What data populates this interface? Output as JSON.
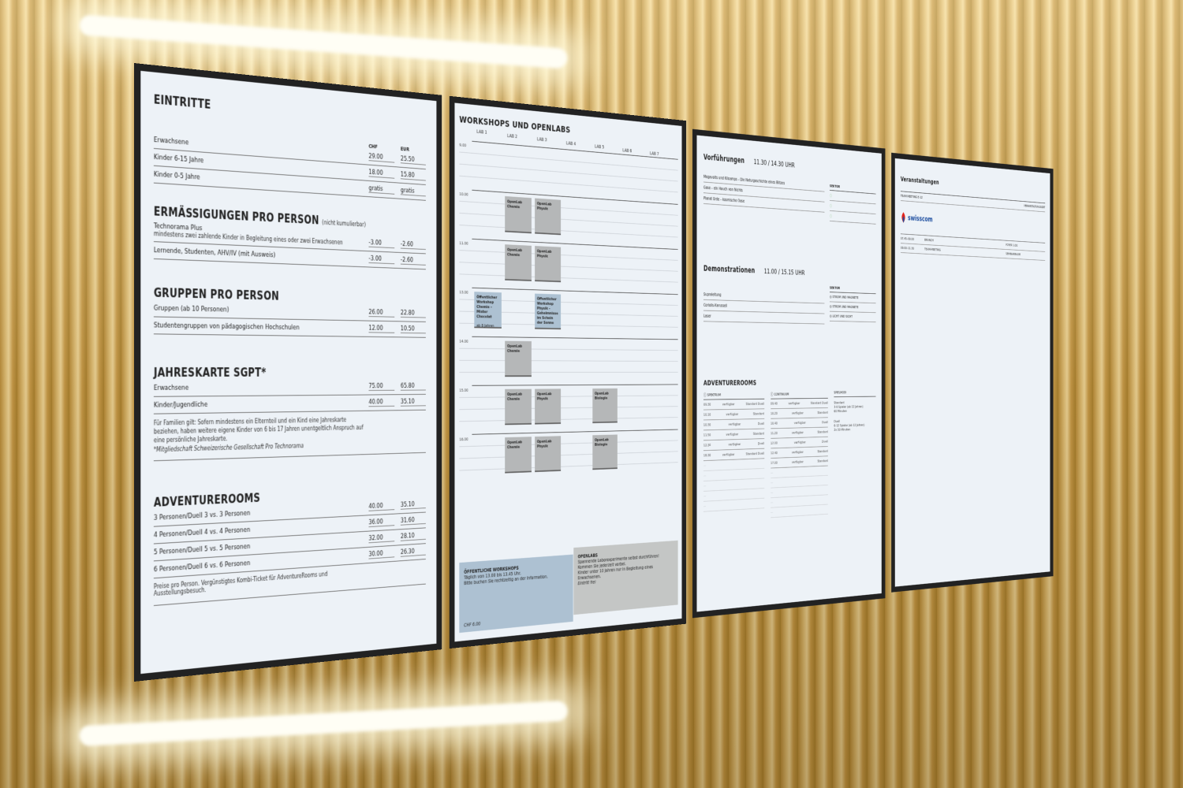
{
  "eintritte": {
    "title": "EINTRITTE",
    "col_chf": "CHF",
    "col_eur": "EUR",
    "rows": [
      {
        "label": "Erwachsene",
        "chf": "29.00",
        "eur": "25.50"
      },
      {
        "label": "Kinder 6-15 Jahre",
        "chf": "18.00",
        "eur": "15.80"
      },
      {
        "label": "Kinder 0-5 Jahre",
        "chf": "gratis",
        "eur": "gratis"
      }
    ]
  },
  "ermaessigungen": {
    "title": "ERMÄSSIGUNGEN PRO PERSON",
    "note": "(nicht kumulierbar)",
    "rows": [
      {
        "label": "Technorama Plus",
        "sub": "mindestens zwei zahlende Kinder in Begleitung eines oder zwei Erwachsenen",
        "chf": "-3.00",
        "eur": "-2.60"
      },
      {
        "label": "Lernende, Studenten, AHV/IV (mit Ausweis)",
        "sub": "",
        "chf": "-3.00",
        "eur": "-2.60"
      }
    ]
  },
  "gruppen": {
    "title": "GRUPPEN PRO PERSON",
    "rows": [
      {
        "label": "Gruppen (ab 10 Personen)",
        "chf": "26.00",
        "eur": "22.80"
      },
      {
        "label": "Studentengruppen von pädagogischen Hochschulen",
        "chf": "12.00",
        "eur": "10.50"
      }
    ]
  },
  "jahreskarte": {
    "title": "JAHRESKARTE SGPT*",
    "rows": [
      {
        "label": "Erwachsene",
        "chf": "75.00",
        "eur": "65.80"
      },
      {
        "label": "Kinder/Jugendliche",
        "chf": "40.00",
        "eur": "35.10"
      }
    ],
    "note": "Für Familien gilt: Sofern mindestens ein Elternteil und ein Kind eine Jahreskarte beziehen, haben weitere eigene Kinder von 6 bis 17 Jahren unentgeltlich Anspruch auf eine persönliche Jahreskarte.",
    "footnote": "*Mitgliedschaft Schweizerische Gesellschaft Pro Technorama"
  },
  "adventurerooms_prices": {
    "title": "ADVENTUREROOMS",
    "rows": [
      {
        "label": "3 Personen/Duell 3 vs. 3 Personen",
        "chf": "40.00",
        "eur": "35.10"
      },
      {
        "label": "4 Personen/Duell 4 vs. 4 Personen",
        "chf": "36.00",
        "eur": "31.60"
      },
      {
        "label": "5 Personen/Duell 5 vs. 5 Personen",
        "chf": "32.00",
        "eur": "28.10"
      },
      {
        "label": "6 Personen/Duell 6 vs. 6 Personen",
        "chf": "30.00",
        "eur": "26.30"
      }
    ],
    "note": "Preise pro Person. Vergünstigtes Kombi-Ticket für AdventureRooms und Ausstellungsbesuch."
  },
  "workshops": {
    "title": "WORKSHOPS UND OPENLABS",
    "labs": [
      "LAB 1",
      "LAB 2",
      "LAB 3",
      "LAB 4",
      "LAB 5",
      "LAB 6",
      "LAB 7"
    ],
    "times": [
      "9.00",
      "10.00",
      "11.00",
      "13.00",
      "14.00",
      "15.00",
      "16.00"
    ],
    "blocks": [
      {
        "row": 1,
        "lab": 1,
        "label": "OpenLab Chemie",
        "kind": "openlab"
      },
      {
        "row": 1,
        "lab": 2,
        "label": "OpenLab Physik",
        "kind": "openlab"
      },
      {
        "row": 2,
        "lab": 1,
        "label": "OpenLab Chemie",
        "kind": "openlab"
      },
      {
        "row": 2,
        "lab": 2,
        "label": "OpenLab Physik",
        "kind": "openlab"
      },
      {
        "row": 3,
        "lab": 0,
        "label": "Öffentlicher Workshop Chemie – Mister Chocolat",
        "sub": "ab 8 Jahren",
        "kind": "workshop"
      },
      {
        "row": 3,
        "lab": 2,
        "label": "Öffentlicher Workshop Physik – Geheimnisse im Schein der Sonne",
        "kind": "workshop"
      },
      {
        "row": 4,
        "lab": 1,
        "label": "OpenLab Chemie",
        "kind": "openlab"
      },
      {
        "row": 5,
        "lab": 1,
        "label": "OpenLab Chemie",
        "kind": "openlab"
      },
      {
        "row": 5,
        "lab": 2,
        "label": "OpenLab Physik",
        "kind": "openlab"
      },
      {
        "row": 5,
        "lab": 4,
        "label": "OpenLab Biologie",
        "kind": "openlab"
      },
      {
        "row": 6,
        "lab": 1,
        "label": "OpenLab Chemie",
        "kind": "openlab"
      },
      {
        "row": 6,
        "lab": 2,
        "label": "OpenLab Physik",
        "kind": "openlab"
      },
      {
        "row": 6,
        "lab": 4,
        "label": "OpenLab Biologie",
        "kind": "openlab"
      }
    ],
    "box_workshops": {
      "title": "ÖFFENTLICHE WORKSHOPS",
      "lines": [
        "Täglich von 13.00 bis 13.45 Uhr.",
        "Bitte buchen Sie rechtzeitig an der Information."
      ],
      "price": "CHF 6.00"
    },
    "box_openlabs": {
      "title": "OPENLABS",
      "lines": [
        "Spannende Laborexperimente selbst durchführen!",
        "Kommen Sie jederzeit vorbei.",
        "Kinder unter 10 Jahren nur in Begleitung eines Erwachsenen."
      ],
      "price": "Eintritt frei"
    }
  },
  "vorfuehrungen": {
    "title": "Vorführungen",
    "times": "11.30 / 14.30 UHR",
    "sektor": "SEKTOR",
    "items": [
      "Megavolts und Kiloamps – Die Naturgeschichte eines Blitzes",
      "Gase – ein Hauch von Nichts",
      "Planet Erde – kosmische Oase"
    ]
  },
  "demonstrationen": {
    "title": "Demonstrationen",
    "times": "11.00 / 15.15 UHR",
    "sektor": "SEKTOR",
    "items": [
      {
        "label": "Supraleitung",
        "sektor": "STROM UND MAGNETE"
      },
      {
        "label": "Coriolis-Karussell",
        "sektor": "STROM UND MAGNETE"
      },
      {
        "label": "Laser",
        "sektor": "LICHT UND SICHT"
      }
    ]
  },
  "adventurerooms": {
    "title": "ADVENTUREROOMS",
    "spektrum": {
      "name": "SPEKTRUM",
      "slots": [
        {
          "t": "09.30",
          "s": "verfügbar",
          "m": "Standard Duell"
        },
        {
          "t": "10.10",
          "s": "verfügbar",
          "m": "Standard"
        },
        {
          "t": "10.30",
          "s": "verfügbar",
          "m": "Duell"
        },
        {
          "t": "11.50",
          "s": "verfügbar",
          "m": "Standard"
        },
        {
          "t": "12.30",
          "s": "verfügbar",
          "m": "Duell"
        },
        {
          "t": "18.30",
          "s": "verfügbar",
          "m": "Standard Duell"
        }
      ]
    },
    "continuum": {
      "name": "CONTINUUM",
      "slots": [
        {
          "t": "09.40",
          "s": "verfügbar",
          "m": "Standard Duell"
        },
        {
          "t": "10.20",
          "s": "verfügbar",
          "m": "Standard"
        },
        {
          "t": "10.40",
          "s": "verfügbar",
          "m": "Duell"
        },
        {
          "t": "11.20",
          "s": "verfügbar",
          "m": "Standard"
        },
        {
          "t": "12.00",
          "s": "verfügbar",
          "m": "Duell"
        },
        {
          "t": "12.40",
          "s": "verfügbar",
          "m": "Standard"
        },
        {
          "t": "17.00",
          "s": "verfügbar",
          "m": "Standard"
        }
      ]
    },
    "spielmodi": {
      "title": "SPIELMODI",
      "modes": [
        [
          "Standard",
          "3-6 Spieler (ab 12 Jahren)",
          "60 Minuten"
        ],
        [
          "Duell",
          "6-12 Spieler (ab 12 Jahren)",
          "2x 30 Minuten"
        ]
      ]
    }
  },
  "veranstaltungen": {
    "title": "Veranstaltungen",
    "event": "TEAM MEETING E-12",
    "col_ort": "VERANSTALTUNGSORT",
    "logo": "swisscom",
    "rows": [
      {
        "time": "07.45–09.00",
        "what": "BRUNCH",
        "where": "FOYER 1.OG"
      },
      {
        "time": "09.00–11.30",
        "what": "TEAM-MEETING",
        "where": "SEMINARRAUM"
      }
    ]
  },
  "colors": {
    "wall": "#d9b56a",
    "screen": "#edf2f7",
    "openlab": "#b5b7b8",
    "workshop": "#adc1d2",
    "swisscom_red": "#e2231a",
    "swisscom_blue": "#1d4ea0"
  }
}
